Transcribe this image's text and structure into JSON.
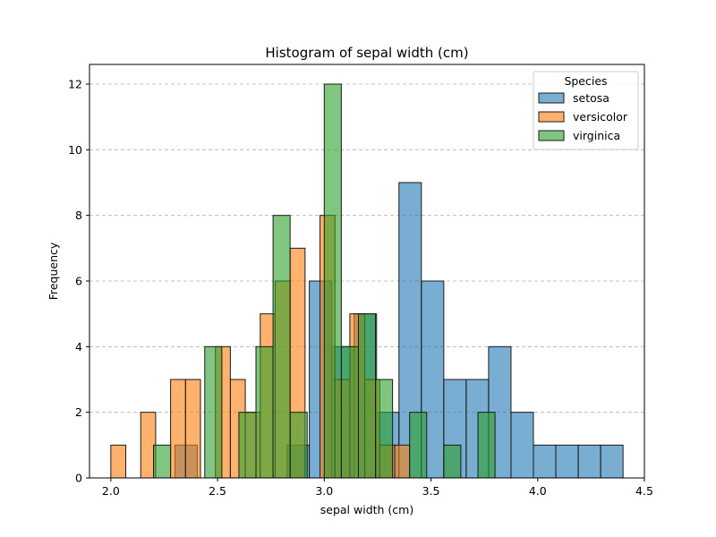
{
  "chart_data": {
    "type": "bar",
    "title": "Histogram of sepal width (cm)",
    "xlabel": "sepal width (cm)",
    "ylabel": "Frequency",
    "xlim": [
      1.9,
      4.5
    ],
    "ylim": [
      0,
      12.6
    ],
    "xticks": [
      "2.0",
      "2.5",
      "3.0",
      "3.5",
      "4.0",
      "4.5"
    ],
    "xtick_values": [
      2.0,
      2.5,
      3.0,
      3.5,
      4.0,
      4.5
    ],
    "yticks": [
      "0",
      "2",
      "4",
      "6",
      "8",
      "10",
      "12"
    ],
    "ytick_values": [
      0,
      2,
      4,
      6,
      8,
      10,
      12
    ],
    "grid": "y-dashed",
    "legend": {
      "title": "Species",
      "placement": "top-right"
    },
    "series": [
      {
        "name": "setosa",
        "color": "#1f77b4",
        "bins": [
          {
            "x0": 2.3,
            "x1": 2.405,
            "y": 1
          },
          {
            "x0": 2.405,
            "x1": 2.51,
            "y": 0
          },
          {
            "x0": 2.51,
            "x1": 2.615,
            "y": 0
          },
          {
            "x0": 2.615,
            "x1": 2.72,
            "y": 0
          },
          {
            "x0": 2.72,
            "x1": 2.825,
            "y": 0
          },
          {
            "x0": 2.825,
            "x1": 2.93,
            "y": 1
          },
          {
            "x0": 2.93,
            "x1": 3.035,
            "y": 6
          },
          {
            "x0": 3.035,
            "x1": 3.14,
            "y": 4
          },
          {
            "x0": 3.14,
            "x1": 3.245,
            "y": 5
          },
          {
            "x0": 3.245,
            "x1": 3.35,
            "y": 2
          },
          {
            "x0": 3.35,
            "x1": 3.455,
            "y": 9
          },
          {
            "x0": 3.455,
            "x1": 3.56,
            "y": 6
          },
          {
            "x0": 3.56,
            "x1": 3.665,
            "y": 3
          },
          {
            "x0": 3.665,
            "x1": 3.77,
            "y": 3
          },
          {
            "x0": 3.77,
            "x1": 3.875,
            "y": 4
          },
          {
            "x0": 3.875,
            "x1": 3.98,
            "y": 2
          },
          {
            "x0": 3.98,
            "x1": 4.085,
            "y": 1
          },
          {
            "x0": 4.085,
            "x1": 4.19,
            "y": 1
          },
          {
            "x0": 4.19,
            "x1": 4.295,
            "y": 1
          },
          {
            "x0": 4.295,
            "x1": 4.4,
            "y": 1
          }
        ]
      },
      {
        "name": "versicolor",
        "color": "#ff7f0e",
        "bins": [
          {
            "x0": 2.0,
            "x1": 2.07,
            "y": 1
          },
          {
            "x0": 2.07,
            "x1": 2.14,
            "y": 0
          },
          {
            "x0": 2.14,
            "x1": 2.21,
            "y": 2
          },
          {
            "x0": 2.21,
            "x1": 2.28,
            "y": 0
          },
          {
            "x0": 2.28,
            "x1": 2.35,
            "y": 3
          },
          {
            "x0": 2.35,
            "x1": 2.42,
            "y": 3
          },
          {
            "x0": 2.42,
            "x1": 2.49,
            "y": 0
          },
          {
            "x0": 2.49,
            "x1": 2.56,
            "y": 4
          },
          {
            "x0": 2.56,
            "x1": 2.63,
            "y": 3
          },
          {
            "x0": 2.63,
            "x1": 2.7,
            "y": 2
          },
          {
            "x0": 2.7,
            "x1": 2.77,
            "y": 5
          },
          {
            "x0": 2.77,
            "x1": 2.84,
            "y": 6
          },
          {
            "x0": 2.84,
            "x1": 2.91,
            "y": 7
          },
          {
            "x0": 2.91,
            "x1": 2.98,
            "y": 0
          },
          {
            "x0": 2.98,
            "x1": 3.05,
            "y": 8
          },
          {
            "x0": 3.05,
            "x1": 3.12,
            "y": 3
          },
          {
            "x0": 3.12,
            "x1": 3.19,
            "y": 5
          },
          {
            "x0": 3.19,
            "x1": 3.26,
            "y": 3
          },
          {
            "x0": 3.26,
            "x1": 3.33,
            "y": 1
          },
          {
            "x0": 3.33,
            "x1": 3.4,
            "y": 1
          }
        ]
      },
      {
        "name": "virginica",
        "color": "#2ca02c",
        "bins": [
          {
            "x0": 2.2,
            "x1": 2.28,
            "y": 1
          },
          {
            "x0": 2.28,
            "x1": 2.36,
            "y": 0
          },
          {
            "x0": 2.36,
            "x1": 2.44,
            "y": 0
          },
          {
            "x0": 2.44,
            "x1": 2.52,
            "y": 4
          },
          {
            "x0": 2.52,
            "x1": 2.6,
            "y": 0
          },
          {
            "x0": 2.6,
            "x1": 2.68,
            "y": 2
          },
          {
            "x0": 2.68,
            "x1": 2.76,
            "y": 4
          },
          {
            "x0": 2.76,
            "x1": 2.84,
            "y": 8
          },
          {
            "x0": 2.84,
            "x1": 2.92,
            "y": 2
          },
          {
            "x0": 2.92,
            "x1": 3.0,
            "y": 0
          },
          {
            "x0": 3.0,
            "x1": 3.08,
            "y": 12
          },
          {
            "x0": 3.08,
            "x1": 3.16,
            "y": 4
          },
          {
            "x0": 3.16,
            "x1": 3.24,
            "y": 5
          },
          {
            "x0": 3.24,
            "x1": 3.32,
            "y": 3
          },
          {
            "x0": 3.32,
            "x1": 3.4,
            "y": 0
          },
          {
            "x0": 3.4,
            "x1": 3.48,
            "y": 2
          },
          {
            "x0": 3.48,
            "x1": 3.56,
            "y": 0
          },
          {
            "x0": 3.56,
            "x1": 3.64,
            "y": 1
          },
          {
            "x0": 3.64,
            "x1": 3.72,
            "y": 0
          },
          {
            "x0": 3.72,
            "x1": 3.8,
            "y": 2
          }
        ]
      }
    ]
  }
}
